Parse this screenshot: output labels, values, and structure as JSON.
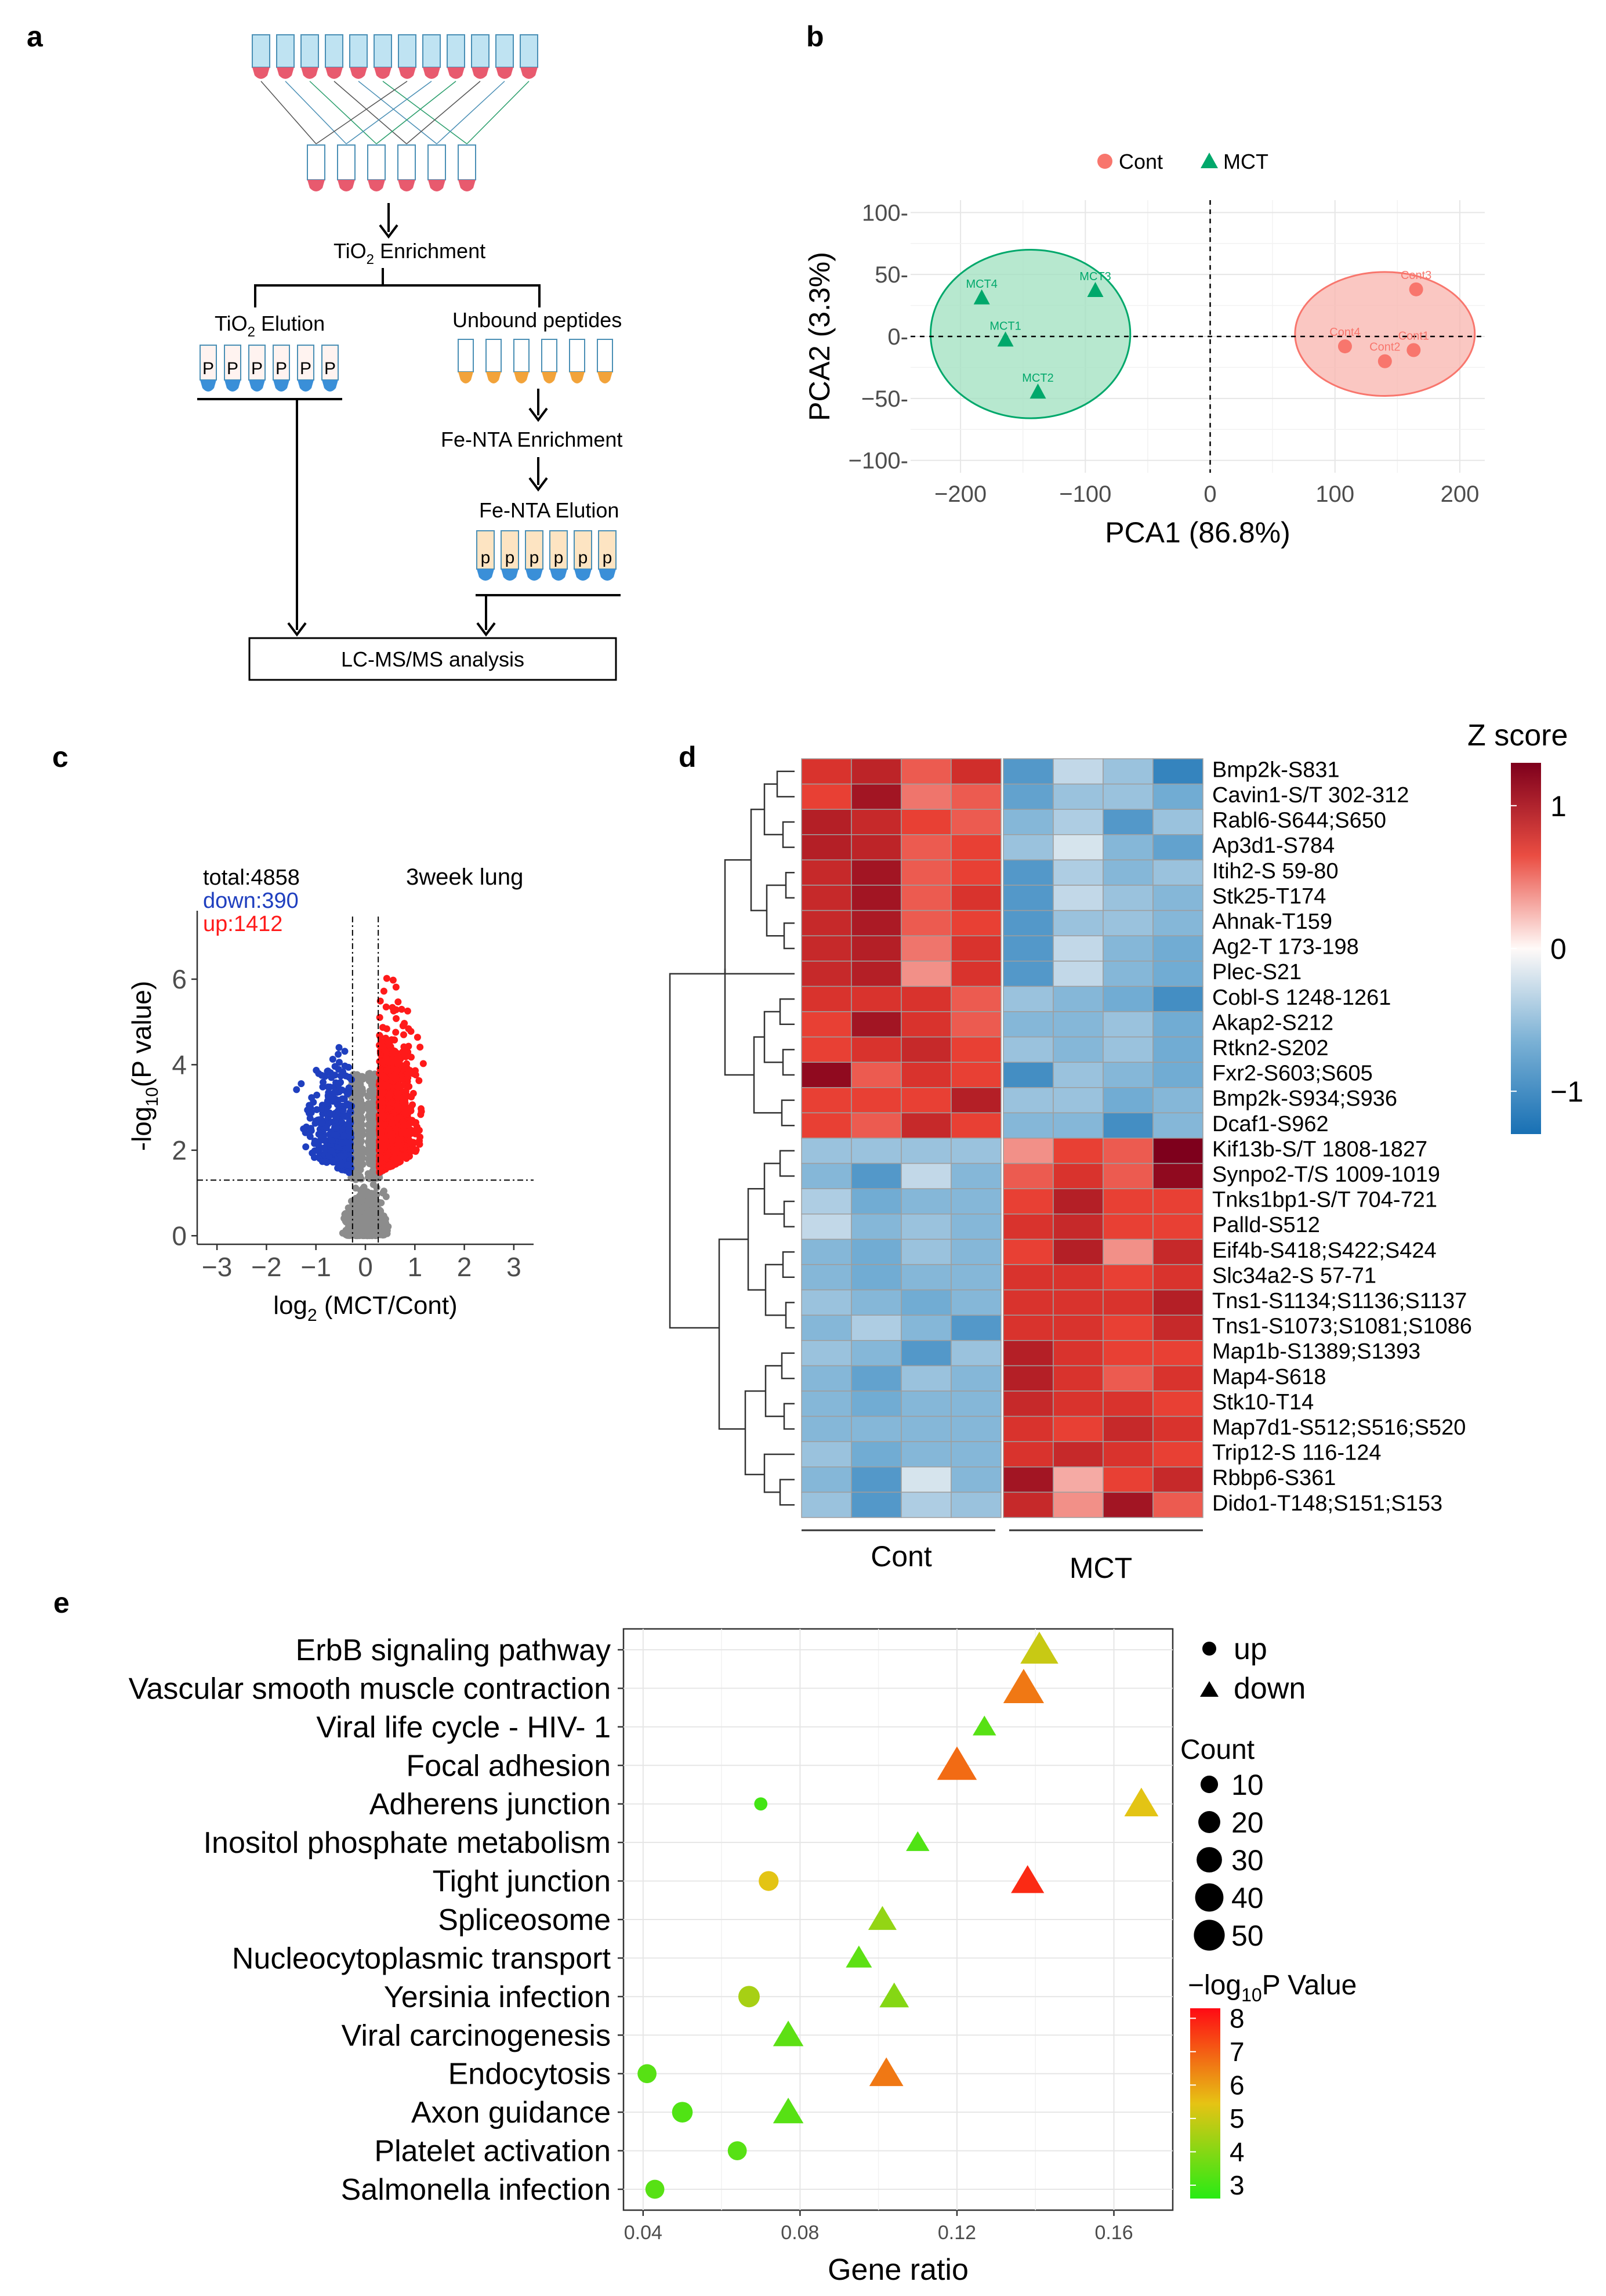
{
  "panels": {
    "a": {
      "letter": "a",
      "tio2_enrichment": [
        "TiO",
        "2",
        " Enrichment"
      ],
      "tio2_elution": [
        "TiO",
        "2",
        " Elution"
      ],
      "unbound": "Unbound peptides",
      "fenta_enrichment": "Fe-NTA Enrichment",
      "fenta_elution": "Fe-NTA Elution",
      "lcms": "LC-MS/MS analysis",
      "p_label": "P",
      "p_label_lower": "p",
      "colors": {
        "tube_blue": "#bfe3f2",
        "tube_red": "#e85a6e",
        "tube_orange": "#f2a33a",
        "tube_tip_blue": "#3a8fd8"
      }
    },
    "b": {
      "letter": "b"
    },
    "c": {
      "letter": "c"
    },
    "d": {
      "letter": "d"
    },
    "e": {
      "letter": "e"
    }
  },
  "chart_data": [
    {
      "panel": "b",
      "type": "scatter",
      "xlabel": "PCA1 (86.8%)",
      "ylabel": "PCA2 (3.3%)",
      "xlim": [
        -240,
        220
      ],
      "ylim": [
        -110,
        110
      ],
      "xticks": [
        -200,
        -100,
        0,
        100,
        200
      ],
      "xtick_labels": [
        "−200",
        "−100",
        "0",
        "100",
        "200"
      ],
      "yticks": [
        -100,
        -50,
        0,
        50,
        100
      ],
      "ytick_labels": [
        "−100-",
        "−50-",
        "0-",
        "50-",
        "100-"
      ],
      "legend": [
        {
          "name": "Cont",
          "color": "#f8766d",
          "marker": "circle"
        },
        {
          "name": "MCT",
          "color": "#00a86b",
          "marker": "triangle"
        }
      ],
      "series": [
        {
          "name": "Cont",
          "color": "#f8766d",
          "marker": "circle",
          "points": [
            {
              "label": "Cont3",
              "x": 165,
              "y": 38
            },
            {
              "label": "Cont4",
              "x": 108,
              "y": -8
            },
            {
              "label": "Cont1",
              "x": 163,
              "y": -11
            },
            {
              "label": "Cont2",
              "x": 140,
              "y": -20
            }
          ],
          "ellipse": {
            "cx": 140,
            "cy": 2,
            "rx": 72,
            "ry": 50,
            "fill": "#f8b4ad"
          }
        },
        {
          "name": "MCT",
          "color": "#00a86b",
          "marker": "triangle",
          "points": [
            {
              "label": "MCT4",
              "x": -183,
              "y": 31
            },
            {
              "label": "MCT3",
              "x": -92,
              "y": 37
            },
            {
              "label": "MCT1",
              "x": -164,
              "y": -3
            },
            {
              "label": "MCT2",
              "x": -138,
              "y": -45
            }
          ],
          "ellipse": {
            "cx": -144,
            "cy": 2,
            "rx": 80,
            "ry": 68,
            "fill": "#9fe0bf"
          }
        }
      ]
    },
    {
      "panel": "c",
      "type": "scatter",
      "subtype": "volcano",
      "xlabel": "log₂ (MCT/Cont)",
      "ylabel": "−log₁₀(P value)",
      "xlabel_parts": [
        "log",
        "2",
        " (MCT/Cont)"
      ],
      "ylabel_parts": [
        "-log",
        "10",
        "(P value)"
      ],
      "xlim": [
        -3.4,
        3.4
      ],
      "ylim": [
        -0.2,
        7.6
      ],
      "xticks": [
        -3,
        -2,
        -1,
        0,
        1,
        2,
        3
      ],
      "xtick_labels": [
        "−3",
        "−2",
        "−1",
        "0",
        "1",
        "2",
        "3"
      ],
      "yticks": [
        0,
        2,
        4,
        6
      ],
      "ytick_labels": [
        "0",
        "2",
        "4",
        "6"
      ],
      "thresholds": {
        "x": [
          -0.26,
          0.26
        ],
        "y": 1.3
      },
      "stats": {
        "total": "total:4858",
        "down": "down:390",
        "up": "up:1412"
      },
      "title": "3week lung",
      "colors": {
        "down": "#1f3fbf",
        "up": "#ff1a1a",
        "ns": "#8c8c8c",
        "total": "#000000"
      },
      "counts": {
        "total": 4858,
        "down": 390,
        "up": 1412
      }
    },
    {
      "panel": "d",
      "type": "heatmap",
      "legend_title": "Z score",
      "legend_ticks": [
        1,
        0,
        -1
      ],
      "legend_tick_labels": [
        "1",
        "0",
        "−1"
      ],
      "legend_range": [
        -1.3,
        1.3
      ],
      "column_groups": [
        {
          "name": "Cont",
          "columns": 4
        },
        {
          "name": "MCT",
          "columns": 4
        }
      ],
      "rows": [
        "Bmp2k-S831",
        "Cavin1-S/T 302-312",
        "Rabl6-S644;S650",
        "Ap3d1-S784",
        "Itih2-S 59-80",
        "Stk25-T174",
        "Ahnak-T159",
        "Ag2-T 173-198",
        "Plec-S21",
        "Cobl-S 1248-1261",
        "Akap2-S212",
        "Rtkn2-S202",
        "Fxr2-S603;S605",
        "Bmp2k-S934;S936",
        "Dcaf1-S962",
        "Kif13b-S/T 1808-1827",
        "Synpo2-T/S 1009-1019",
        "Tnks1bp1-S/T 704-721",
        "Palld-S512",
        "Eif4b-S418;S422;S424",
        "Slc34a2-S 57-71",
        "Tns1-S1134;S1136;S1137",
        "Tns1-S1073;S1081;S1086",
        "Map1b-S1389;S1393",
        "Map4-S618",
        "Stk10-T14",
        "Map7d1-S512;S516;S520",
        "Trip12-S 116-124",
        "Rbbp6-S361",
        "Dido1-T148;S151;S153"
      ],
      "values": [
        [
          0.8,
          0.95,
          0.6,
          0.85,
          -0.9,
          -0.3,
          -0.5,
          -1.1
        ],
        [
          0.7,
          1.1,
          0.5,
          0.6,
          -0.8,
          -0.5,
          -0.5,
          -0.7
        ],
        [
          1.0,
          0.9,
          0.7,
          0.6,
          -0.6,
          -0.4,
          -0.9,
          -0.5
        ],
        [
          1.0,
          0.95,
          0.6,
          0.7,
          -0.5,
          -0.2,
          -0.6,
          -0.8
        ],
        [
          0.9,
          1.1,
          0.6,
          0.7,
          -0.9,
          -0.4,
          -0.6,
          -0.5
        ],
        [
          0.9,
          1.1,
          0.6,
          0.8,
          -0.9,
          -0.3,
          -0.5,
          -0.6
        ],
        [
          0.9,
          1.05,
          0.6,
          0.7,
          -0.9,
          -0.5,
          -0.5,
          -0.6
        ],
        [
          0.9,
          1.0,
          0.5,
          0.8,
          -0.9,
          -0.3,
          -0.6,
          -0.7
        ],
        [
          0.9,
          1.0,
          0.4,
          0.8,
          -0.9,
          -0.3,
          -0.6,
          -0.7
        ],
        [
          0.8,
          0.8,
          0.8,
          0.6,
          -0.5,
          -0.6,
          -0.7,
          -1.0
        ],
        [
          0.7,
          1.1,
          0.8,
          0.6,
          -0.6,
          -0.6,
          -0.5,
          -0.7
        ],
        [
          0.7,
          0.8,
          0.9,
          0.7,
          -0.5,
          -0.6,
          -0.5,
          -0.7
        ],
        [
          1.2,
          0.6,
          0.8,
          0.7,
          -1.0,
          -0.5,
          -0.6,
          -0.7
        ],
        [
          0.7,
          0.7,
          0.7,
          1.0,
          -0.5,
          -0.5,
          -0.7,
          -0.6
        ],
        [
          0.7,
          0.6,
          0.9,
          0.7,
          -0.6,
          -0.6,
          -1.0,
          -0.6
        ],
        [
          -0.5,
          -0.5,
          -0.5,
          -0.5,
          0.4,
          0.7,
          0.6,
          1.3
        ],
        [
          -0.6,
          -0.9,
          -0.3,
          -0.6,
          0.6,
          0.8,
          0.6,
          1.2
        ],
        [
          -0.4,
          -0.7,
          -0.6,
          -0.6,
          0.7,
          1.0,
          0.7,
          0.7
        ],
        [
          -0.3,
          -0.6,
          -0.5,
          -0.6,
          0.8,
          0.9,
          0.7,
          0.7
        ],
        [
          -0.6,
          -0.7,
          -0.5,
          -0.6,
          0.7,
          1.0,
          0.4,
          0.9
        ],
        [
          -0.6,
          -0.7,
          -0.6,
          -0.6,
          0.8,
          0.8,
          0.7,
          0.8
        ],
        [
          -0.5,
          -0.6,
          -0.7,
          -0.6,
          0.8,
          0.8,
          0.8,
          1.0
        ],
        [
          -0.6,
          -0.4,
          -0.6,
          -0.9,
          0.8,
          0.8,
          0.7,
          0.9
        ],
        [
          -0.5,
          -0.6,
          -0.9,
          -0.5,
          1.0,
          0.8,
          0.7,
          0.7
        ],
        [
          -0.6,
          -0.8,
          -0.5,
          -0.6,
          1.0,
          0.8,
          0.6,
          0.8
        ],
        [
          -0.6,
          -0.7,
          -0.6,
          -0.6,
          0.9,
          0.8,
          0.8,
          0.7
        ],
        [
          -0.6,
          -0.6,
          -0.6,
          -0.6,
          0.8,
          0.7,
          0.9,
          0.8
        ],
        [
          -0.5,
          -0.7,
          -0.6,
          -0.6,
          0.8,
          0.9,
          0.8,
          0.7
        ],
        [
          -0.6,
          -0.9,
          -0.2,
          -0.6,
          1.1,
          0.3,
          0.7,
          0.9
        ],
        [
          -0.5,
          -0.9,
          -0.4,
          -0.5,
          0.9,
          0.4,
          1.1,
          0.6
        ]
      ]
    },
    {
      "panel": "e",
      "type": "scatter",
      "subtype": "dotplot",
      "xlabel": "Gene ratio",
      "xlim": [
        0.035,
        0.175
      ],
      "xticks": [
        0.04,
        0.08,
        0.12,
        0.16
      ],
      "xtick_labels": [
        "0.04",
        "0.08",
        "0.12",
        "0.16"
      ],
      "categories": [
        "ErbB signaling pathway",
        "Vascular smooth muscle contraction",
        "Viral life cycle - HIV- 1",
        "Focal adhesion",
        "Adherens junction",
        "Inositol phosphate metabolism",
        "Tight junction",
        "Spliceosome",
        "Nucleocytoplasmic transport",
        "Yersinia infection",
        "Viral carcinogenesis",
        "Endocytosis",
        "Axon guidance",
        "Platelet activation",
        "Salmonella infection"
      ],
      "shape_legend": {
        "items": [
          {
            "label": "up",
            "marker": "circle"
          },
          {
            "label": "down",
            "marker": "triangle"
          }
        ]
      },
      "size_legend": {
        "title": "Count",
        "values": [
          10,
          20,
          30,
          40,
          50
        ],
        "labels": [
          "10",
          "20",
          "30",
          "40",
          "50"
        ]
      },
      "color_legend": {
        "title": "−log₁₀P Value",
        "title_parts": [
          "−log",
          "10",
          "P Value"
        ],
        "ticks": [
          8,
          7,
          6,
          5,
          4,
          3
        ],
        "tick_labels": [
          "8",
          "7",
          "6",
          "5",
          "4",
          "3"
        ],
        "range": [
          2.6,
          8.3
        ]
      },
      "points": [
        {
          "category": "ErbB signaling pathway",
          "x": 0.141,
          "shape": "triangle",
          "count": 40,
          "neglogp": 5.0
        },
        {
          "category": "Vascular smooth muscle contraction",
          "x": 0.137,
          "shape": "triangle",
          "count": 48,
          "neglogp": 6.6
        },
        {
          "category": "Viral life cycle - HIV- 1",
          "x": 0.127,
          "shape": "triangle",
          "count": 10,
          "neglogp": 3.3
        },
        {
          "category": "Focal adhesion",
          "x": 0.12,
          "shape": "triangle",
          "count": 45,
          "neglogp": 6.8
        },
        {
          "category": "Adherens junction",
          "x": 0.07,
          "shape": "circle",
          "count": 4,
          "neglogp": 3.0
        },
        {
          "category": "Adherens junction",
          "x": 0.167,
          "shape": "triangle",
          "count": 30,
          "neglogp": 5.4
        },
        {
          "category": "Inositol phosphate metabolism",
          "x": 0.11,
          "shape": "triangle",
          "count": 10,
          "neglogp": 3.2
        },
        {
          "category": "Tight junction",
          "x": 0.072,
          "shape": "circle",
          "count": 16,
          "neglogp": 5.4
        },
        {
          "category": "Tight junction",
          "x": 0.138,
          "shape": "triangle",
          "count": 28,
          "neglogp": 7.8
        },
        {
          "category": "Spliceosome",
          "x": 0.101,
          "shape": "triangle",
          "count": 18,
          "neglogp": 4.2
        },
        {
          "category": "Nucleocytoplasmic transport",
          "x": 0.095,
          "shape": "triangle",
          "count": 14,
          "neglogp": 3.4
        },
        {
          "category": "Yersinia infection",
          "x": 0.067,
          "shape": "circle",
          "count": 20,
          "neglogp": 4.5
        },
        {
          "category": "Yersinia infection",
          "x": 0.104,
          "shape": "triangle",
          "count": 20,
          "neglogp": 4.0
        },
        {
          "category": "Viral carcinogenesis",
          "x": 0.077,
          "shape": "triangle",
          "count": 22,
          "neglogp": 3.4
        },
        {
          "category": "Endocytosis",
          "x": 0.041,
          "shape": "circle",
          "count": 14,
          "neglogp": 3.3
        },
        {
          "category": "Endocytosis",
          "x": 0.102,
          "shape": "triangle",
          "count": 30,
          "neglogp": 6.6
        },
        {
          "category": "Axon guidance",
          "x": 0.05,
          "shape": "circle",
          "count": 18,
          "neglogp": 3.2
        },
        {
          "category": "Axon guidance",
          "x": 0.077,
          "shape": "triangle",
          "count": 22,
          "neglogp": 3.3
        },
        {
          "category": "Platelet activation",
          "x": 0.064,
          "shape": "circle",
          "count": 14,
          "neglogp": 3.3
        },
        {
          "category": "Salmonella infection",
          "x": 0.043,
          "shape": "circle",
          "count": 14,
          "neglogp": 3.3
        }
      ]
    }
  ]
}
